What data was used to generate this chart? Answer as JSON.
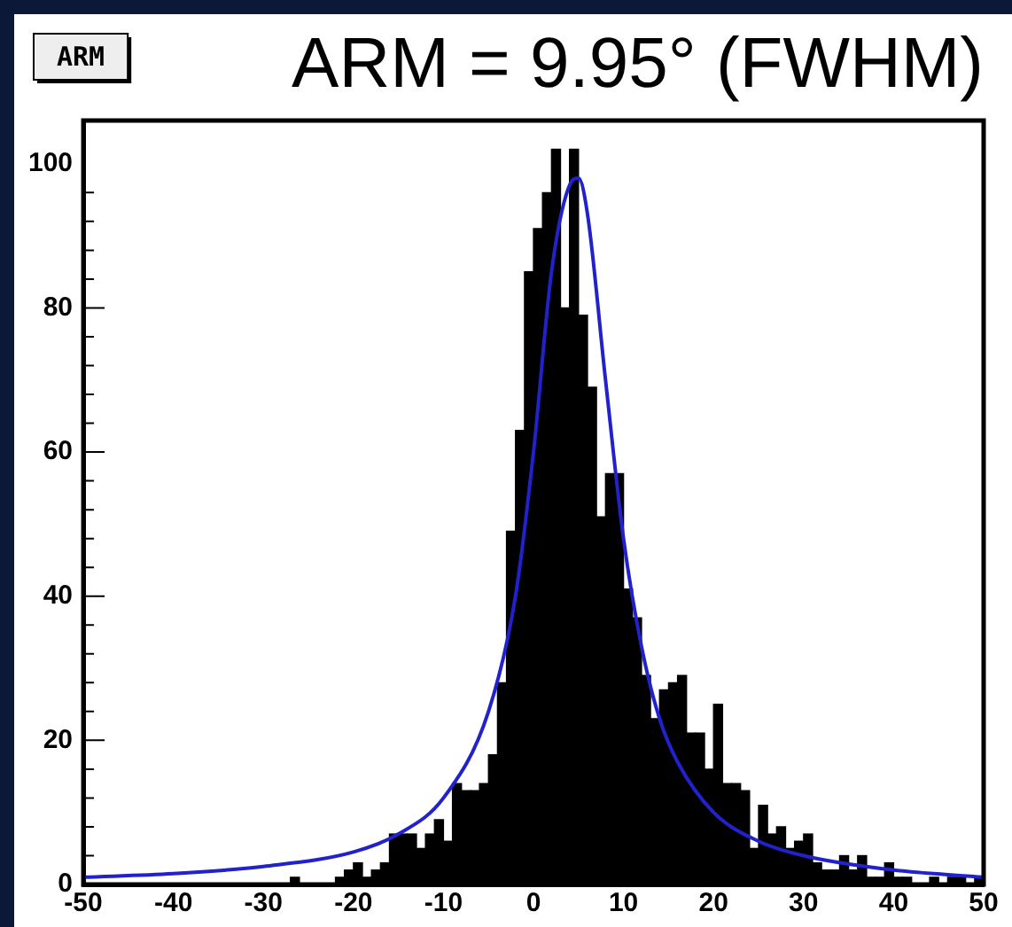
{
  "chart_data": {
    "type": "histogram",
    "title": "ARM = 9.95° (FWHM)",
    "annotations": [
      "ARM"
    ],
    "bins": [
      -50,
      -49,
      -48,
      -47,
      -46,
      -45,
      -44,
      -43,
      -42,
      -41,
      -40,
      -39,
      -38,
      -37,
      -36,
      -35,
      -34,
      -33,
      -32,
      -31,
      -30,
      -29,
      -28,
      -27,
      -26,
      -25,
      -24,
      -23,
      -22,
      -21,
      -20,
      -19,
      -18,
      -17,
      -16,
      -15,
      -14,
      -13,
      -12,
      -11,
      -10,
      -9,
      -8,
      -7,
      -6,
      -5,
      -4,
      -3,
      -2,
      -1,
      0,
      1,
      2,
      3,
      4,
      5,
      6,
      7,
      8,
      9,
      10,
      11,
      12,
      13,
      14,
      15,
      16,
      17,
      18,
      19,
      20,
      21,
      22,
      23,
      24,
      25,
      26,
      27,
      28,
      29,
      30,
      31,
      32,
      33,
      34,
      35,
      36,
      37,
      38,
      39,
      40,
      41,
      42,
      43,
      44,
      45,
      46,
      47,
      48,
      49,
      50
    ],
    "values": [
      0,
      0,
      0,
      0,
      0,
      0,
      0,
      0,
      0,
      0,
      0,
      0,
      0,
      0,
      0,
      0,
      0,
      0,
      0,
      0,
      0,
      0,
      0,
      1,
      0,
      0,
      0,
      0,
      1,
      2,
      3,
      1,
      2,
      3,
      7,
      7,
      7,
      5,
      7,
      9,
      6,
      14,
      13,
      13,
      14,
      18,
      28,
      49,
      63,
      85,
      91,
      96,
      102,
      80,
      102,
      79,
      69,
      51,
      57,
      57,
      41,
      37,
      29,
      23,
      27,
      28,
      29,
      21,
      21,
      16,
      25,
      14,
      14,
      13,
      5,
      11,
      7,
      8,
      5,
      6,
      7,
      3,
      2,
      2,
      4,
      2,
      4,
      1,
      1,
      3,
      1,
      1,
      0,
      0,
      1,
      0,
      1,
      1,
      0,
      1
    ],
    "color": "#000000",
    "series": [
      {
        "type": "line",
        "color": "#2222cc",
        "x": [
          -50,
          -40,
          -30,
          -20,
          -15,
          -10,
          -5,
          -2,
          0,
          2,
          4,
          5,
          6,
          8,
          10,
          12,
          14,
          16,
          20,
          25,
          30,
          40,
          50
        ],
        "values": [
          1,
          1.5,
          2.5,
          4.5,
          7,
          12,
          24,
          40,
          60,
          85,
          97,
          98,
          93,
          70,
          48,
          33,
          23,
          17,
          10,
          6,
          4,
          2,
          1
        ]
      }
    ],
    "xlim": [
      -50,
      50
    ],
    "xticks": [
      -50,
      -40,
      -30,
      -20,
      -10,
      0,
      10,
      20,
      30,
      40,
      50
    ],
    "ylim": [
      0,
      106
    ],
    "yticks": [
      0,
      20,
      40,
      60,
      80,
      100
    ],
    "grid": false,
    "legend": false
  }
}
